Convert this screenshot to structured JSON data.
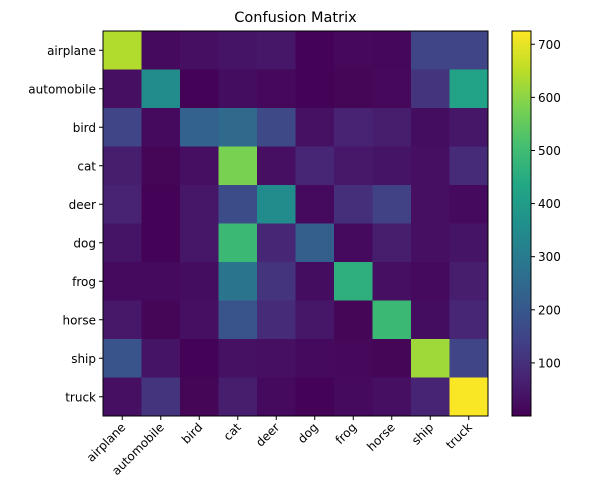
{
  "chart_data": {
    "type": "heatmap",
    "title": "Confusion Matrix",
    "xlabel": "",
    "ylabel": "",
    "row_labels": [
      "airplane",
      "automobile",
      "bird",
      "cat",
      "deer",
      "dog",
      "frog",
      "horse",
      "ship",
      "truck"
    ],
    "col_labels": [
      "airplane",
      "automobile",
      "bird",
      "cat",
      "deer",
      "dog",
      "frog",
      "horse",
      "ship",
      "truck"
    ],
    "values": [
      [
        640,
        20,
        30,
        40,
        45,
        5,
        15,
        12,
        150,
        150
      ],
      [
        30,
        350,
        5,
        25,
        15,
        5,
        10,
        15,
        110,
        420
      ],
      [
        150,
        20,
        230,
        250,
        160,
        35,
        70,
        60,
        25,
        45
      ],
      [
        60,
        10,
        30,
        580,
        30,
        80,
        50,
        40,
        30,
        90
      ],
      [
        70,
        5,
        45,
        170,
        350,
        20,
        100,
        140,
        30,
        20
      ],
      [
        40,
        5,
        45,
        490,
        80,
        220,
        20,
        60,
        30,
        40
      ],
      [
        20,
        20,
        25,
        280,
        110,
        25,
        460,
        30,
        20,
        60
      ],
      [
        50,
        10,
        30,
        190,
        90,
        45,
        10,
        490,
        25,
        80
      ],
      [
        190,
        40,
        5,
        35,
        30,
        20,
        15,
        10,
        620,
        150
      ],
      [
        30,
        110,
        10,
        60,
        20,
        5,
        20,
        30,
        75,
        720
      ]
    ],
    "colorbar": {
      "min": 0,
      "max": 725,
      "ticks": [
        100,
        200,
        300,
        400,
        500,
        600,
        700
      ]
    },
    "colormap": "viridis",
    "grid": false
  }
}
